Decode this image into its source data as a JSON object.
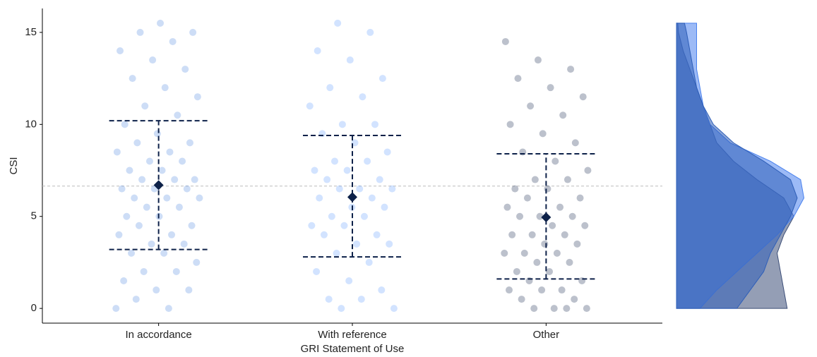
{
  "chart_data": [
    {
      "type": "strip",
      "y_label": "CSI",
      "x_label": "GRI Statement of Use",
      "categories": [
        "In accordance",
        "With reference",
        "Other"
      ],
      "xlim": [
        0.4,
        3.6
      ],
      "ylim": [
        -0.8,
        16.3
      ],
      "yticks": [
        0,
        5,
        10,
        15
      ],
      "reference_line": 6.65,
      "groups": [
        {
          "color": "#6f9fe6",
          "mean": 6.7,
          "lower": 3.2,
          "upper": 10.2,
          "values": [
            0,
            0,
            0.5,
            1,
            1,
            1.5,
            2,
            2,
            2.5,
            3,
            3,
            3.5,
            3.5,
            4,
            4,
            4.5,
            4.5,
            5,
            5,
            5.5,
            5.5,
            6,
            6,
            6,
            6.5,
            6.5,
            6.5,
            7,
            7,
            7,
            7.5,
            7.5,
            8,
            8,
            8.5,
            8.5,
            9,
            9,
            9.5,
            10,
            10.5,
            11,
            11.5,
            12,
            12.5,
            13,
            13.5,
            14,
            14.5,
            15,
            15,
            15.5
          ]
        },
        {
          "color": "#7fb0ff",
          "mean": 6.05,
          "lower": 2.8,
          "upper": 9.4,
          "values": [
            0,
            0,
            0.5,
            0.5,
            1,
            1.5,
            2,
            2.5,
            3,
            3.5,
            3.5,
            4,
            4,
            4.5,
            4.5,
            5,
            5,
            5.5,
            5.5,
            6,
            6,
            6.5,
            6.5,
            6.5,
            7,
            7,
            7.5,
            7.5,
            8,
            8,
            8.5,
            9,
            9.5,
            10,
            10,
            11,
            11.5,
            12,
            12.5,
            13.5,
            14,
            15,
            15.5
          ]
        },
        {
          "color": "#3e4d6e",
          "mean": 4.95,
          "lower": 1.6,
          "upper": 8.4,
          "values": [
            0,
            0,
            0,
            0,
            0.5,
            0.5,
            1,
            1,
            1,
            1.5,
            1.5,
            2,
            2,
            2.5,
            2.5,
            3,
            3,
            3,
            3.5,
            3.5,
            4,
            4,
            4,
            4.5,
            4.5,
            5,
            5,
            5,
            5.5,
            5.5,
            6,
            6,
            6.5,
            6.5,
            7,
            7,
            7.5,
            8,
            8.5,
            9,
            9.5,
            10,
            10.5,
            11,
            11.5,
            12,
            12.5,
            13,
            13.5,
            14.5
          ]
        }
      ]
    },
    {
      "type": "density",
      "ylim": [
        -0.8,
        16.3
      ],
      "xlim": [
        0,
        0.2
      ],
      "y": [
        0,
        1,
        2,
        3,
        4,
        5,
        6,
        7,
        8,
        9,
        10,
        11,
        12,
        13,
        14,
        15,
        15.5
      ],
      "series": [
        {
          "color": "#3c4e78",
          "values": [
            0.165,
            0.16,
            0.155,
            0.15,
            0.16,
            0.175,
            0.16,
            0.12,
            0.085,
            0.06,
            0.05,
            0.04,
            0.03,
            0.02,
            0.01,
            0.003,
            0.002
          ]
        },
        {
          "color": "#4a82ee",
          "values": [
            0.035,
            0.06,
            0.09,
            0.12,
            0.15,
            0.175,
            0.19,
            0.185,
            0.14,
            0.08,
            0.05,
            0.04,
            0.035,
            0.03,
            0.03,
            0.03,
            0.03
          ]
        },
        {
          "color": "#2f5fb8",
          "values": [
            0.09,
            0.11,
            0.13,
            0.14,
            0.155,
            0.17,
            0.18,
            0.17,
            0.13,
            0.085,
            0.055,
            0.04,
            0.03,
            0.025,
            0.02,
            0.015,
            0.012
          ]
        }
      ]
    }
  ]
}
